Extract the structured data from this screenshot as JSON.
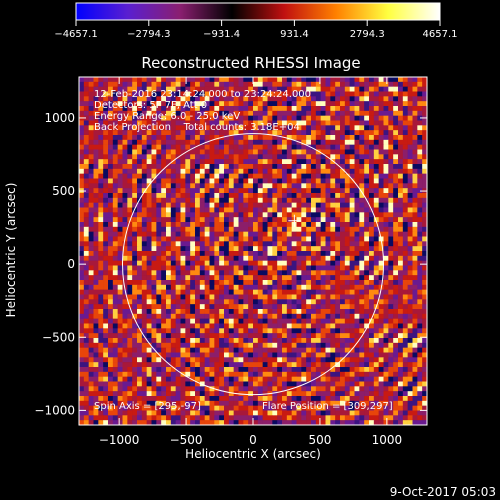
{
  "colorbar": {
    "tick_labels": [
      "−4657.1",
      "−2794.3",
      "−931.4",
      "931.4",
      "2794.3",
      "4657.1"
    ],
    "min": -4657.1,
    "max": 4657.1,
    "colors": [
      "#0000ff",
      "#5a1fd0",
      "#8a1f70",
      "#000000",
      "#c01010",
      "#ff8000",
      "#ffff40",
      "#ffffff"
    ]
  },
  "chart_data": {
    "type": "heatmap",
    "title": "Reconstructed RHESSI Image",
    "xlabel": "Heliocentric X (arcsec)",
    "ylabel": "Heliocentric Y (arcsec)",
    "xlim": [
      -1300,
      1300
    ],
    "ylim": [
      -1100,
      1280
    ],
    "x_ticks": [
      -1000,
      -500,
      0,
      500,
      1000
    ],
    "y_ticks": [
      -1000,
      -500,
      0,
      500,
      1000
    ],
    "x_tick_labels": [
      "−1000",
      "−500",
      "0",
      "500",
      "1000"
    ],
    "y_tick_labels": [
      "−1000",
      "−500",
      "0",
      "500",
      "1000"
    ],
    "solar_disk": {
      "center": [
        0,
        0
      ],
      "radius": 975
    },
    "flare_marker": [
      309,
      297
    ],
    "info_lines": [
      "12-Feb-2016 23:14:24.000 to 23:24:24.000",
      "Detectors: 5F 7F, Att 0",
      "Energy Range: 6.0 - 25.0 keV",
      "Back Projection    Total counts: 3.18E+04"
    ],
    "spin_axis_label": "Spin Axis = [295,-97]",
    "flare_position_label": "Flare Position = [309,297]",
    "date_stamp": "9-Oct-2017 05:03"
  }
}
